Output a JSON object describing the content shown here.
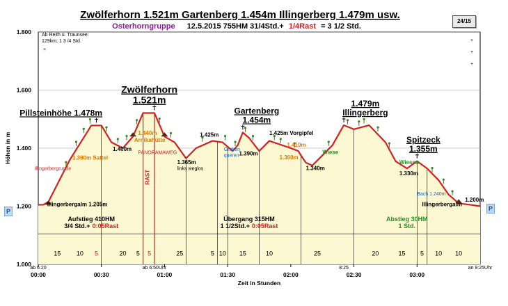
{
  "title": "Zwölferhorn 1.521m Gartenberg 1.454m Illingerberg 1.479m usw.",
  "subtitle": {
    "group": "Osterhorngruppe",
    "details": "12.5.2015      755HM  31/4Std.+",
    "rast": "1/4Rast",
    "total": "= 3 1/2 Std."
  },
  "page_badge": "24/15",
  "note": [
    "Ab Reith ü. Traunsee:",
    "129km; 1 3 /4 Std."
  ],
  "parking_label": "P",
  "colors": {
    "profile_line": "#d42020",
    "fill": "#fbf8d2",
    "red_text": "#d42020",
    "orange_text": "#e07800",
    "green_text": "#209020",
    "blue_text": "#1f5fb0",
    "purple_text": "#8a1aa0",
    "grid": "#999999"
  },
  "chart_data": {
    "type": "area",
    "xlabel": "Zeit in Stunden",
    "ylabel": "Höhen in m",
    "xlim": [
      0,
      3.5
    ],
    "ylim": [
      1000,
      1800
    ],
    "x_ticks": [
      {
        "value": 0,
        "label": "00:00"
      },
      {
        "value": 0.5,
        "label": "00:30"
      },
      {
        "value": 1.0,
        "label": "01:00"
      },
      {
        "value": 1.5,
        "label": "01:30"
      },
      {
        "value": 2.0,
        "label": "02:00"
      },
      {
        "value": 2.5,
        "label": "02:30"
      },
      {
        "value": 3.0,
        "label": "03:00"
      }
    ],
    "y_ticks": [
      {
        "value": 1000,
        "label": "1.000"
      },
      {
        "value": 1200,
        "label": "1.200"
      },
      {
        "value": 1400,
        "label": "1.400"
      },
      {
        "value": 1600,
        "label": "1.600"
      },
      {
        "value": 1800,
        "label": "1.800"
      }
    ],
    "profile": [
      [
        0.0,
        1205
      ],
      [
        0.04,
        1205
      ],
      [
        0.08,
        1215
      ],
      [
        0.25,
        1360
      ],
      [
        0.42,
        1478
      ],
      [
        0.5,
        1478
      ],
      [
        0.58,
        1420
      ],
      [
        0.67,
        1400
      ],
      [
        0.75,
        1440
      ],
      [
        0.83,
        1521
      ],
      [
        0.92,
        1521
      ],
      [
        1.0,
        1440
      ],
      [
        1.08,
        1420
      ],
      [
        1.17,
        1365
      ],
      [
        1.25,
        1400
      ],
      [
        1.38,
        1425
      ],
      [
        1.46,
        1420
      ],
      [
        1.54,
        1390
      ],
      [
        1.58,
        1410
      ],
      [
        1.62,
        1454
      ],
      [
        1.67,
        1435
      ],
      [
        1.75,
        1390
      ],
      [
        1.83,
        1425
      ],
      [
        2.0,
        1400
      ],
      [
        2.06,
        1390
      ],
      [
        2.08,
        1375
      ],
      [
        2.12,
        1350
      ],
      [
        2.17,
        1340
      ],
      [
        2.25,
        1375
      ],
      [
        2.33,
        1410
      ],
      [
        2.42,
        1479
      ],
      [
        2.5,
        1465
      ],
      [
        2.62,
        1479
      ],
      [
        2.75,
        1420
      ],
      [
        2.83,
        1355
      ],
      [
        2.92,
        1330
      ],
      [
        3.0,
        1355
      ],
      [
        3.08,
        1330
      ],
      [
        3.17,
        1290
      ],
      [
        3.25,
        1240
      ],
      [
        3.33,
        1210
      ],
      [
        3.42,
        1205
      ],
      [
        3.5,
        1200
      ]
    ],
    "dividers": [
      0.5,
      0.83,
      0.92,
      1.17,
      1.42,
      1.5,
      1.75,
      2.08,
      2.5,
      3.0,
      3.08
    ],
    "segments": [
      {
        "x": 0.15,
        "label": "15",
        "color": "black"
      },
      {
        "x": 0.33,
        "label": "10",
        "color": "black"
      },
      {
        "x": 0.46,
        "label": "5",
        "color": "red"
      },
      {
        "x": 0.67,
        "label": "20",
        "color": "black"
      },
      {
        "x": 0.79,
        "label": "5",
        "color": "black"
      },
      {
        "x": 0.88,
        "label": "5",
        "color": "red"
      },
      {
        "x": 1.12,
        "label": "25",
        "color": "black"
      },
      {
        "x": 1.38,
        "label": "5",
        "color": "black"
      },
      {
        "x": 1.46,
        "label": "10",
        "color": "black"
      },
      {
        "x": 1.62,
        "label": "15",
        "color": "black"
      },
      {
        "x": 1.83,
        "label": "10",
        "color": "black"
      },
      {
        "x": 2.21,
        "label": "25",
        "color": "black"
      },
      {
        "x": 2.67,
        "label": "20",
        "color": "black"
      },
      {
        "x": 2.88,
        "label": "15",
        "color": "black"
      },
      {
        "x": 3.04,
        "label": "5",
        "color": "black"
      },
      {
        "x": 3.17,
        "label": "10",
        "color": "black"
      },
      {
        "x": 3.33,
        "label": "10",
        "color": "black"
      }
    ],
    "time_marks": [
      {
        "x": 0.0,
        "label": "ab 6:20"
      },
      {
        "x": 0.92,
        "label": "ab 6:50Uhr"
      },
      {
        "x": 2.42,
        "label": "8:25"
      },
      {
        "x": 3.5,
        "label": "an 9:25Uhr"
      }
    ],
    "phases": [
      {
        "x": 0.42,
        "line1": "Aufstieg  410HM",
        "line2a": "3/4 Std.+",
        "line2b": "0:05Rast",
        "color": "black"
      },
      {
        "x": 1.67,
        "line1": "Übergang  315HM",
        "line2a": "1 1/2Std.+",
        "line2b": "0:05Rast",
        "color": "black"
      },
      {
        "x": 2.92,
        "line1": "Abstieg  30HM",
        "line2a": "1 Std.",
        "line2b": "",
        "color": "green"
      }
    ],
    "peaks": [
      {
        "x": 0.18,
        "y": 1478,
        "lines": [
          "Pillsteinhöhe 1.478m"
        ],
        "big": false
      },
      {
        "x": 0.88,
        "y": 1521,
        "lines": [
          "Zwölferhorn",
          "1.521m"
        ],
        "big": true
      },
      {
        "x": 1.73,
        "y": 1454,
        "lines": [
          "Gartenberg",
          "1.454m"
        ],
        "big": false
      },
      {
        "x": 2.59,
        "y": 1479,
        "lines": [
          "1.479m",
          "Illingerberg"
        ],
        "big": false
      },
      {
        "x": 3.05,
        "y": 1355,
        "lines": [
          "Spitzeck",
          "1.355m"
        ],
        "big": false
      }
    ],
    "annotations": [
      {
        "x": 0.07,
        "y": 1200,
        "text": "Illingerbergalm 1.205m",
        "color": "black",
        "kind": "lab"
      },
      {
        "x": 0.27,
        "y": 1360,
        "text": "1.360m Sattel",
        "color": "orange",
        "kind": "lab"
      },
      {
        "x": -0.03,
        "y": 1325,
        "text": "Illingerbergrunde",
        "color": "red",
        "kind": "sm"
      },
      {
        "x": 0.59,
        "y": 1390,
        "text": "1.400m",
        "color": "black",
        "kind": "lab"
      },
      {
        "x": 0.79,
        "y": 1445,
        "text": "1.440m",
        "color": "orange",
        "kind": "lab"
      },
      {
        "x": 0.76,
        "y": 1422,
        "text": "Arnikahütte",
        "color": "orange",
        "kind": "lab"
      },
      {
        "x": 0.79,
        "y": 1380,
        "text": "PANORAMAWEG",
        "color": "red",
        "kind": "sm"
      },
      {
        "x": 1.1,
        "y": 1345,
        "text": "1.365m",
        "color": "black",
        "kind": "lab"
      },
      {
        "x": 1.1,
        "y": 1325,
        "text": "links weglos",
        "color": "black",
        "kind": "sm"
      },
      {
        "x": 1.28,
        "y": 1440,
        "text": "1.425m",
        "color": "black",
        "kind": "lab"
      },
      {
        "x": 1.47,
        "y": 1390,
        "text": "Graben",
        "color": "blue",
        "kind": "sm"
      },
      {
        "x": 1.47,
        "y": 1370,
        "text": "queren",
        "color": "blue",
        "kind": "sm"
      },
      {
        "x": 1.59,
        "y": 1375,
        "text": "1.390m",
        "color": "black",
        "kind": "lab"
      },
      {
        "x": 1.83,
        "y": 1445,
        "text": "1.425m Vorgipfel",
        "color": "black",
        "kind": "lab"
      },
      {
        "x": 1.97,
        "y": 1405,
        "text": "1.410m",
        "color": "orange",
        "kind": "lab"
      },
      {
        "x": 1.91,
        "y": 1362,
        "text": "1.360m",
        "color": "orange",
        "kind": "lab"
      },
      {
        "x": 2.12,
        "y": 1325,
        "text": "1.340m",
        "color": "black",
        "kind": "lab"
      },
      {
        "x": 2.25,
        "y": 1380,
        "text": "Wiese",
        "color": "green",
        "kind": "lab"
      },
      {
        "x": 2.86,
        "y": 1345,
        "text": "Wiesen",
        "color": "green",
        "kind": "lab"
      },
      {
        "x": 2.86,
        "y": 1307,
        "text": "1.330m",
        "color": "black",
        "kind": "lab"
      },
      {
        "x": 3.0,
        "y": 1237,
        "text": "Bach 1.240m",
        "color": "blue",
        "kind": "sm"
      },
      {
        "x": 3.04,
        "y": 1200,
        "text": "Illingerbergalm",
        "color": "black",
        "kind": "lab"
      },
      {
        "x": 3.38,
        "y": 1215,
        "text": "1.200m",
        "color": "black",
        "kind": "lab"
      }
    ],
    "rast_label": {
      "x": 0.88,
      "y": 1300,
      "text": "RAST"
    },
    "huts": [
      {
        "x": 0.08,
        "y": 1205
      },
      {
        "x": 0.75,
        "y": 1440
      },
      {
        "x": 1.0,
        "y": 1440
      },
      {
        "x": 3.33,
        "y": 1210
      }
    ],
    "crosses": [
      {
        "x": 0.46,
        "y": 1478
      },
      {
        "x": 0.92,
        "y": 1521
      },
      {
        "x": 1.62,
        "y": 1454
      },
      {
        "x": 2.42,
        "y": 1479
      },
      {
        "x": 3.0,
        "y": 1355
      }
    ],
    "trees": [
      [
        0.22,
        1330
      ],
      [
        0.3,
        1400
      ],
      [
        0.36,
        1445
      ],
      [
        0.41,
        1478
      ],
      [
        0.54,
        1450
      ],
      [
        0.63,
        1410
      ],
      [
        0.7,
        1420
      ],
      [
        0.78,
        1475
      ],
      [
        0.96,
        1480
      ],
      [
        1.05,
        1430
      ],
      [
        1.3,
        1415
      ],
      [
        1.48,
        1420
      ],
      [
        1.56,
        1400
      ],
      [
        1.64,
        1448
      ],
      [
        1.7,
        1420
      ],
      [
        1.87,
        1420
      ],
      [
        1.92,
        1410
      ],
      [
        2.03,
        1395
      ],
      [
        2.3,
        1400
      ],
      [
        2.45,
        1475
      ],
      [
        2.54,
        1470
      ],
      [
        2.58,
        1478
      ],
      [
        2.69,
        1450
      ],
      [
        2.78,
        1395
      ],
      [
        3.12,
        1310
      ],
      [
        3.21,
        1270
      ],
      [
        3.28,
        1230
      ]
    ]
  }
}
